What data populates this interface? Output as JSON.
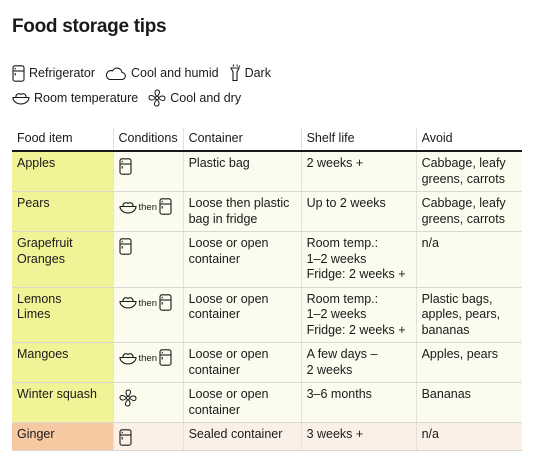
{
  "title": "Food storage tips",
  "legend": [
    {
      "icon": "refrigerator-icon",
      "label": "Refrigerator"
    },
    {
      "icon": "cloud-icon",
      "label": "Cool and humid"
    },
    {
      "icon": "flashlight-icon",
      "label": "Dark"
    },
    {
      "icon": "bowl-icon",
      "label": "Room temperature"
    },
    {
      "icon": "fan-icon",
      "label": "Cool and dry"
    }
  ],
  "table": {
    "headers": [
      "Food item",
      "Conditions",
      "Container",
      "Shelf life",
      "Avoid"
    ],
    "rows": [
      {
        "item": [
          "Apples"
        ],
        "cond": "fridge",
        "container": [
          "Plastic bag"
        ],
        "shelf": [
          "2 weeks +"
        ],
        "avoid": [
          "Cabbage, leafy",
          "greens, carrots"
        ],
        "group": "fruit"
      },
      {
        "item": [
          "Pears"
        ],
        "cond": "room-then-fridge",
        "container": [
          "Loose then plastic",
          "bag in fridge"
        ],
        "shelf": [
          "Up to 2 weeks"
        ],
        "avoid": [
          "Cabbage, leafy",
          "greens, carrots"
        ],
        "group": "fruit"
      },
      {
        "item": [
          "Grapefruit",
          "Oranges"
        ],
        "cond": "fridge",
        "container": [
          "Loose or open",
          "container"
        ],
        "shelf": [
          "Room temp.:",
          "1–2 weeks",
          "Fridge: 2 weeks +"
        ],
        "avoid": [
          " n/a"
        ],
        "group": "fruit"
      },
      {
        "item": [
          "Lemons",
          "Limes"
        ],
        "cond": "room-then-fridge",
        "container": [
          "Loose or open",
          "container"
        ],
        "shelf": [
          "Room temp.:",
          "1–2 weeks",
          "Fridge: 2 weeks +"
        ],
        "avoid": [
          "Plastic bags,",
          "apples, pears,",
          "bananas"
        ],
        "group": "fruit"
      },
      {
        "item": [
          "Mangoes"
        ],
        "cond": "room-then-fridge",
        "container": [
          "Loose or open",
          "container"
        ],
        "shelf": [
          "A few days –",
          "2 weeks"
        ],
        "avoid": [
          "Apples, pears"
        ],
        "group": "fruit"
      },
      {
        "item": [
          "Winter squash"
        ],
        "cond": "cool-dry",
        "container": [
          "Loose or open",
          "container"
        ],
        "shelf": [
          "3–6 months"
        ],
        "avoid": [
          " Bananas"
        ],
        "group": "fruit"
      },
      {
        "item": [
          "Ginger"
        ],
        "cond": "fridge",
        "container": [
          "Sealed container"
        ],
        "shelf": [
          "3 weeks +"
        ],
        "avoid": [
          " n/a"
        ],
        "group": "veg"
      }
    ],
    "then_label": "then"
  },
  "colors": {
    "fruit_item_bg": "#f2f296",
    "fruit_row_bg": "#fbfbee",
    "veg_item_bg": "#f6c9a3",
    "veg_row_bg": "#fbf0e8"
  }
}
